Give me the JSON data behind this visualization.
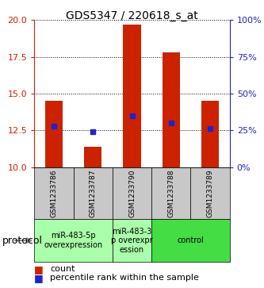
{
  "title": "GDS5347 / 220618_s_at",
  "samples": [
    "GSM1233786",
    "GSM1233787",
    "GSM1233790",
    "GSM1233788",
    "GSM1233789"
  ],
  "bar_bottoms": [
    10,
    10,
    10,
    10,
    10
  ],
  "bar_tops": [
    14.5,
    11.4,
    19.7,
    17.8,
    14.5
  ],
  "percentile_values": [
    12.8,
    12.4,
    13.5,
    13.0,
    12.6
  ],
  "ylim_left": [
    10,
    20
  ],
  "yticks_left": [
    10,
    12.5,
    15,
    17.5,
    20
  ],
  "ylim_right": [
    0,
    100
  ],
  "yticks_right": [
    0,
    25,
    50,
    75,
    100
  ],
  "bar_color": "#CC2200",
  "marker_color": "#2222CC",
  "protocol_groups": [
    {
      "label": "miR-483-5p\noverexpression",
      "indices": [
        0,
        1
      ],
      "color": "#AAFFAA"
    },
    {
      "label": "miR-483-3\np overexpr\nession",
      "indices": [
        2
      ],
      "color": "#AAFFAA"
    },
    {
      "label": "control",
      "indices": [
        3,
        4
      ],
      "color": "#44DD44"
    }
  ],
  "protocol_label": "protocol",
  "legend_count_label": "count",
  "legend_percentile_label": "percentile rank within the sample",
  "title_fontsize": 10,
  "tick_fontsize": 8,
  "sample_label_fontsize": 6.5,
  "proto_label_fontsize": 7,
  "legend_fontsize": 8
}
